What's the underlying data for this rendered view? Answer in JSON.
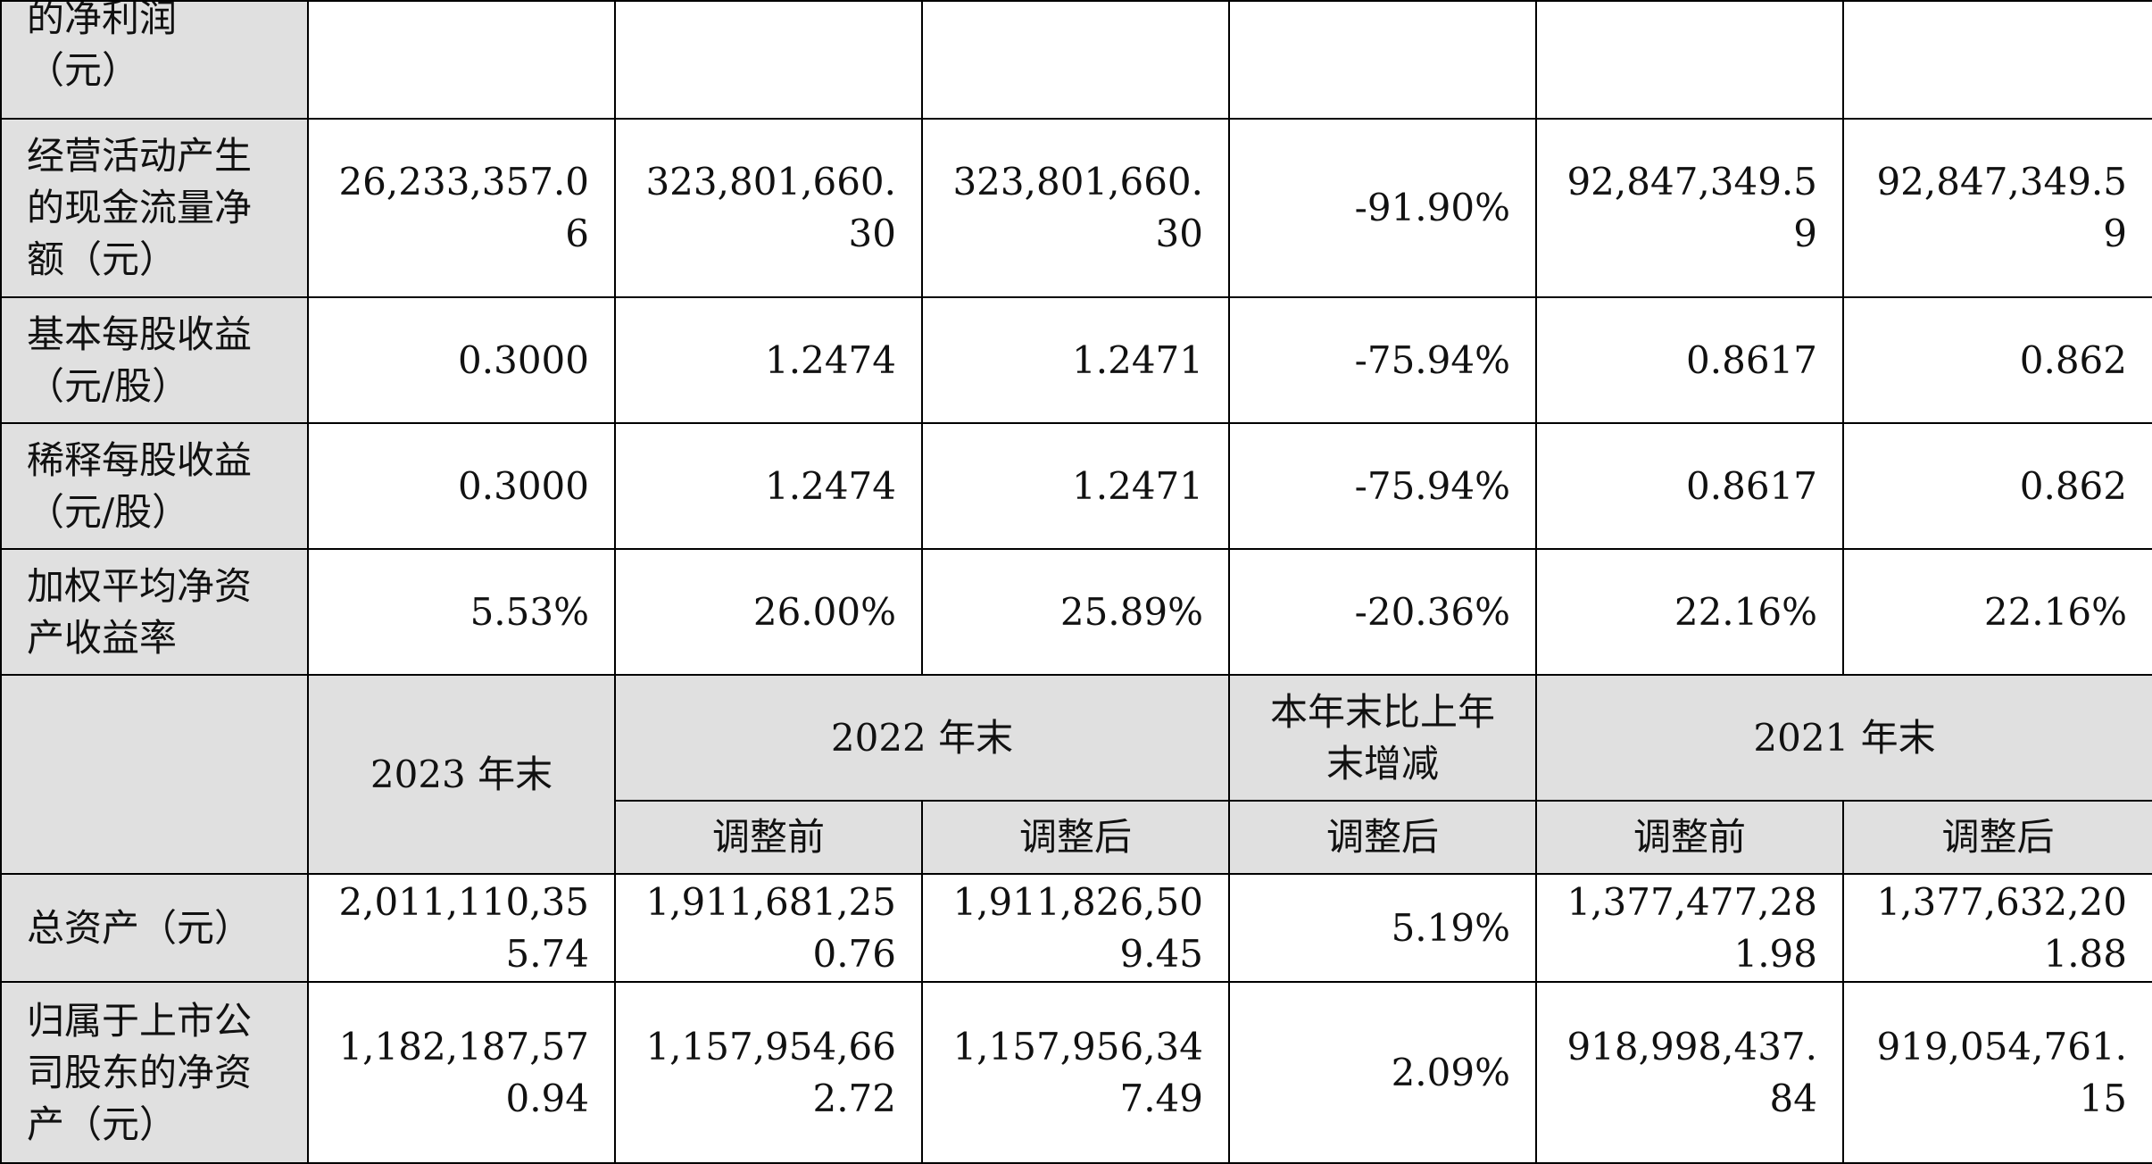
{
  "rows_top": [
    {
      "label": "的净利润\n（元）",
      "values": [
        "",
        "",
        "",
        "",
        "",
        ""
      ]
    },
    {
      "label": "经营活动产生\n的现金流量净\n额（元）",
      "values": [
        "26,233,357.0\n6",
        "323,801,660.\n30",
        "323,801,660.\n30",
        "-91.90%",
        "92,847,349.5\n9",
        "92,847,349.5\n9"
      ]
    },
    {
      "label": "基本每股收益\n（元/股）",
      "values": [
        "0.3000",
        "1.2474",
        "1.2471",
        "-75.94%",
        "0.8617",
        "0.862"
      ]
    },
    {
      "label": "稀释每股收益\n（元/股）",
      "values": [
        "0.3000",
        "1.2474",
        "1.2471",
        "-75.94%",
        "0.8617",
        "0.862"
      ]
    },
    {
      "label": "加权平均净资\n产收益率",
      "values": [
        "5.53%",
        "26.00%",
        "25.89%",
        "-20.36%",
        "22.16%",
        "22.16%"
      ]
    }
  ],
  "header": {
    "col_2023_end": "2023 年末",
    "col_2022_end": "2022 年末",
    "col_change": "本年末比上年\n末增减",
    "col_2021_end": "2021 年末",
    "before_adjust": "调整前",
    "after_adjust": "调整后"
  },
  "rows_bottom": [
    {
      "label": "总资产（元）",
      "values": [
        "2,011,110,35\n5.74",
        "1,911,681,25\n0.76",
        "1,911,826,50\n9.45",
        "5.19%",
        "1,377,477,28\n1.98",
        "1,377,632,20\n1.88"
      ]
    },
    {
      "label": "归属于上市公\n司股东的净资\n产（元）",
      "values": [
        "1,182,187,57\n0.94",
        "1,157,954,66\n2.72",
        "1,157,956,34\n7.49",
        "2.09%",
        "918,998,437.\n84",
        "919,054,761.\n15"
      ]
    }
  ]
}
